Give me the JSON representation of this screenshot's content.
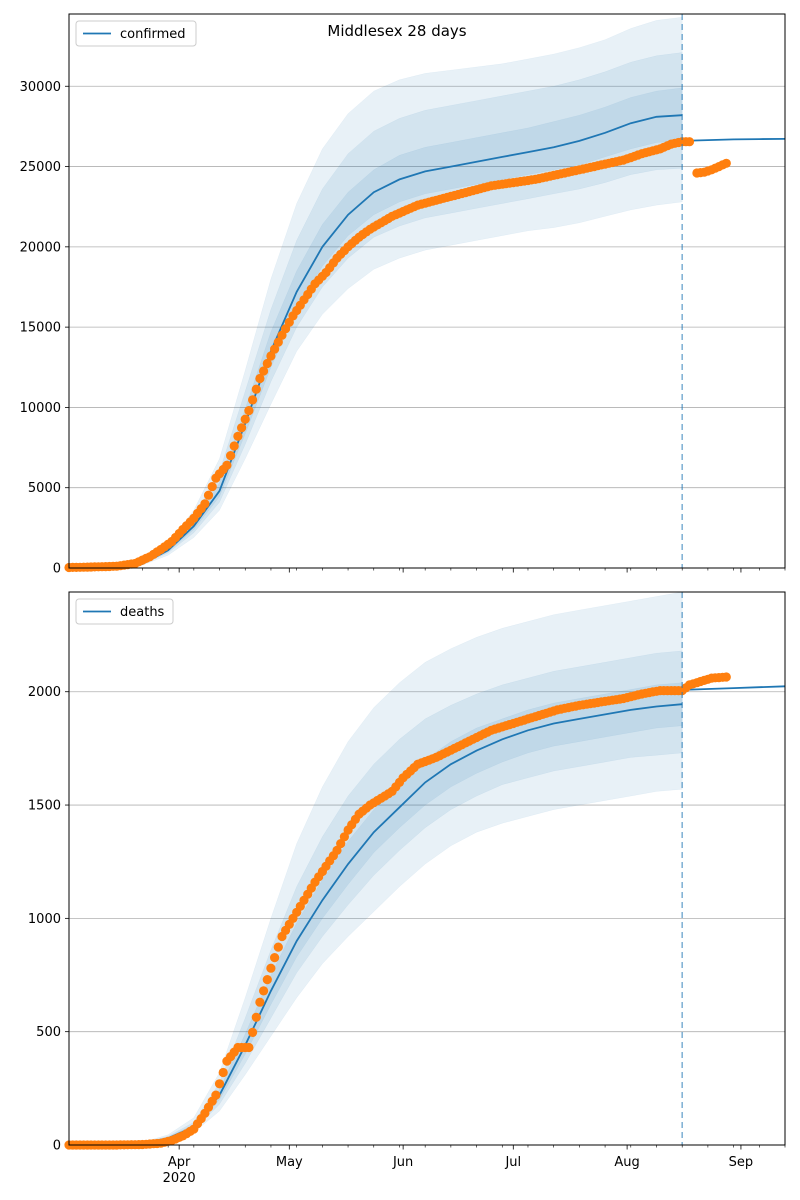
{
  "suptitle": "Middlesex 28 days",
  "colors": {
    "model_line": "#1f77b4",
    "observed": "#ff7f0e",
    "band": "#1f77b4",
    "grid": "#b0b0b0",
    "vline": "#1f77b4"
  },
  "chart_data": [
    {
      "type": "line",
      "legend_label": "confirmed",
      "legend_position": "top-left",
      "ylim": [
        0,
        34500
      ],
      "yticks": [
        0,
        5000,
        10000,
        15000,
        20000,
        25000,
        30000
      ],
      "grid_y": true,
      "xlim": [
        "2020-03-02",
        "2020-09-13"
      ],
      "vline": "2020-08-16",
      "model": {
        "x": [
          "2020-03-02",
          "2020-03-15",
          "2020-03-22",
          "2020-03-29",
          "2020-04-05",
          "2020-04-12",
          "2020-04-19",
          "2020-04-26",
          "2020-05-03",
          "2020-05-10",
          "2020-05-17",
          "2020-05-24",
          "2020-05-31",
          "2020-06-07",
          "2020-06-14",
          "2020-06-21",
          "2020-06-28",
          "2020-07-05",
          "2020-07-12",
          "2020-07-19",
          "2020-07-26",
          "2020-08-02",
          "2020-08-09",
          "2020-08-16"
        ],
        "median": [
          0,
          40,
          250,
          1100,
          2600,
          4800,
          9000,
          13500,
          17200,
          20000,
          22000,
          23400,
          24200,
          24700,
          25000,
          25300,
          25600,
          25900,
          26200,
          26600,
          27100,
          27700,
          28100,
          28200
        ],
        "bands": [
          {
            "lower": [
              0,
              30,
              180,
              800,
              1900,
              3600,
              6800,
              10200,
              13500,
              15800,
              17400,
              18600,
              19300,
              19800,
              20100,
              20400,
              20700,
              21000,
              21200,
              21500,
              21900,
              22300,
              22600,
              22800
            ],
            "upper": [
              0,
              60,
              350,
              1500,
              3600,
              6800,
              12300,
              18000,
              22700,
              26100,
              28300,
              29700,
              30400,
              30800,
              31000,
              31200,
              31400,
              31700,
              32000,
              32400,
              32900,
              33600,
              34100,
              34300
            ]
          },
          {
            "lower": [
              0,
              34,
              210,
              940,
              2200,
              4100,
              7700,
              11600,
              15000,
              17500,
              19300,
              20600,
              21300,
              21800,
              22100,
              22400,
              22700,
              23000,
              23300,
              23600,
              24000,
              24500,
              24800,
              24900
            ],
            "upper": [
              0,
              50,
              310,
              1320,
              3200,
              6000,
              11000,
              16100,
              20400,
              23600,
              25800,
              27200,
              28000,
              28500,
              28800,
              29100,
              29400,
              29700,
              30000,
              30400,
              30900,
              31500,
              31900,
              32100
            ]
          },
          {
            "lower": [
              0,
              37,
              230,
              1020,
              2400,
              4450,
              8350,
              12500,
              16100,
              18800,
              20700,
              22000,
              22800,
              23300,
              23600,
              23900,
              24200,
              24500,
              24800,
              25100,
              25600,
              26100,
              26500,
              26600
            ],
            "upper": [
              0,
              45,
              280,
              1200,
              2900,
              5300,
              9900,
              14700,
              18500,
              21400,
              23400,
              24800,
              25700,
              26200,
              26500,
              26800,
              27100,
              27400,
              27800,
              28200,
              28700,
              29300,
              29700,
              29900
            ]
          }
        ]
      },
      "forecast": {
        "x": [
          "2020-08-16",
          "2020-08-23",
          "2020-08-30",
          "2020-09-06",
          "2020-09-13"
        ],
        "values": [
          26600,
          26650,
          26690,
          26710,
          26720
        ]
      },
      "observed": {
        "x": [
          "2020-03-02",
          "2020-03-08",
          "2020-03-15",
          "2020-03-20",
          "2020-03-24",
          "2020-03-27",
          "2020-03-30",
          "2020-04-02",
          "2020-04-05",
          "2020-04-08",
          "2020-04-11",
          "2020-04-14",
          "2020-04-17",
          "2020-04-20",
          "2020-04-23",
          "2020-04-26",
          "2020-04-29",
          "2020-05-02",
          "2020-05-05",
          "2020-05-08",
          "2020-05-11",
          "2020-05-14",
          "2020-05-17",
          "2020-05-20",
          "2020-05-23",
          "2020-05-26",
          "2020-05-29",
          "2020-06-01",
          "2020-06-05",
          "2020-06-10",
          "2020-06-15",
          "2020-06-20",
          "2020-06-25",
          "2020-07-01",
          "2020-07-07",
          "2020-07-13",
          "2020-07-19",
          "2020-07-25",
          "2020-07-31",
          "2020-08-05",
          "2020-08-10",
          "2020-08-13",
          "2020-08-16",
          "2020-08-18",
          "2020-08-20",
          "2020-08-22",
          "2020-08-24",
          "2020-08-26",
          "2020-08-28"
        ],
        "values": [
          30,
          60,
          110,
          280,
          700,
          1150,
          1650,
          2400,
          3100,
          4000,
          5600,
          6400,
          8200,
          9800,
          11800,
          13200,
          14500,
          15700,
          16700,
          17700,
          18400,
          19300,
          20000,
          20600,
          21100,
          21500,
          21900,
          22200,
          22600,
          22900,
          23200,
          23500,
          23800,
          24000,
          24200,
          24500,
          24800,
          25100,
          25400,
          25800,
          26100,
          26400,
          26550,
          26550,
          24600,
          24650,
          24800,
          25000,
          25200
        ]
      }
    },
    {
      "type": "line",
      "legend_label": "deaths",
      "legend_position": "top-left",
      "ylim": [
        0,
        2440
      ],
      "yticks": [
        0,
        500,
        1000,
        1500,
        2000
      ],
      "grid_y": true,
      "xlim": [
        "2020-03-02",
        "2020-09-13"
      ],
      "xticks": [
        "Apr",
        "May",
        "Jun",
        "Jul",
        "Aug",
        "Sep"
      ],
      "xtick_dates": [
        "2020-04-01",
        "2020-05-01",
        "2020-06-01",
        "2020-07-01",
        "2020-08-01",
        "2020-09-01"
      ],
      "xlabel_year": "2020",
      "vline": "2020-08-16",
      "model": {
        "x": [
          "2020-03-02",
          "2020-03-15",
          "2020-03-22",
          "2020-03-29",
          "2020-04-05",
          "2020-04-12",
          "2020-04-19",
          "2020-04-26",
          "2020-05-03",
          "2020-05-10",
          "2020-05-17",
          "2020-05-24",
          "2020-05-31",
          "2020-06-07",
          "2020-06-14",
          "2020-06-21",
          "2020-06-28",
          "2020-07-05",
          "2020-07-12",
          "2020-07-19",
          "2020-07-26",
          "2020-08-02",
          "2020-08-09",
          "2020-08-16"
        ],
        "median": [
          0,
          2,
          8,
          30,
          80,
          220,
          440,
          680,
          900,
          1080,
          1240,
          1380,
          1490,
          1600,
          1680,
          1740,
          1790,
          1830,
          1860,
          1880,
          1900,
          1920,
          1935,
          1945
        ],
        "bands": [
          {
            "lower": [
              0,
              1,
              5,
              20,
              55,
              150,
              310,
              480,
              650,
              800,
              920,
              1030,
              1140,
              1240,
              1320,
              1380,
              1420,
              1450,
              1480,
              1500,
              1520,
              1540,
              1560,
              1570
            ],
            "upper": [
              0,
              3,
              12,
              45,
              120,
              320,
              650,
              1000,
              1330,
              1580,
              1780,
              1930,
              2040,
              2130,
              2190,
              2240,
              2280,
              2310,
              2340,
              2360,
              2380,
              2400,
              2420,
              2440
            ]
          },
          {
            "lower": [
              0,
              1,
              6,
              24,
              65,
              180,
              360,
              560,
              760,
              920,
              1060,
              1190,
              1300,
              1400,
              1480,
              1540,
              1590,
              1620,
              1650,
              1670,
              1690,
              1710,
              1720,
              1730
            ],
            "upper": [
              0,
              2,
              10,
              38,
              100,
              275,
              560,
              860,
              1140,
              1360,
              1540,
              1680,
              1790,
              1880,
              1940,
              1990,
              2030,
              2060,
              2090,
              2110,
              2130,
              2150,
              2170,
              2180
            ]
          },
          {
            "lower": [
              0,
              1,
              7,
              27,
              72,
              200,
              400,
              620,
              830,
              1000,
              1150,
              1290,
              1400,
              1500,
              1580,
              1640,
              1690,
              1730,
              1760,
              1780,
              1800,
              1820,
              1840,
              1850
            ],
            "upper": [
              0,
              2,
              9,
              34,
              90,
              245,
              490,
              750,
              980,
              1170,
              1340,
              1480,
              1590,
              1700,
              1780,
              1840,
              1880,
              1920,
              1950,
              1970,
              1990,
              2010,
              2030,
              2040
            ]
          }
        ]
      },
      "forecast": {
        "x": [
          "2020-08-16",
          "2020-08-23",
          "2020-08-30",
          "2020-09-06",
          "2020-09-13"
        ],
        "values": [
          2008,
          2012,
          2016,
          2020,
          2024
        ]
      },
      "observed": {
        "x": [
          "2020-03-02",
          "2020-03-15",
          "2020-03-22",
          "2020-03-27",
          "2020-03-30",
          "2020-04-02",
          "2020-04-05",
          "2020-04-08",
          "2020-04-11",
          "2020-04-14",
          "2020-04-17",
          "2020-04-20",
          "2020-04-23",
          "2020-04-26",
          "2020-04-29",
          "2020-05-02",
          "2020-05-05",
          "2020-05-08",
          "2020-05-11",
          "2020-05-14",
          "2020-05-17",
          "2020-05-20",
          "2020-05-23",
          "2020-05-26",
          "2020-05-29",
          "2020-06-01",
          "2020-06-05",
          "2020-06-10",
          "2020-06-15",
          "2020-06-20",
          "2020-06-25",
          "2020-07-01",
          "2020-07-07",
          "2020-07-13",
          "2020-07-19",
          "2020-07-25",
          "2020-07-31",
          "2020-08-05",
          "2020-08-10",
          "2020-08-16",
          "2020-08-18",
          "2020-08-21",
          "2020-08-24",
          "2020-08-28"
        ],
        "values": [
          0,
          0,
          2,
          8,
          20,
          40,
          70,
          140,
          220,
          370,
          430,
          430,
          630,
          780,
          920,
          1000,
          1080,
          1160,
          1230,
          1300,
          1390,
          1460,
          1500,
          1530,
          1560,
          1620,
          1680,
          1710,
          1750,
          1790,
          1830,
          1860,
          1890,
          1920,
          1940,
          1955,
          1970,
          1990,
          2005,
          2005,
          2030,
          2045,
          2060,
          2065
        ]
      }
    }
  ]
}
